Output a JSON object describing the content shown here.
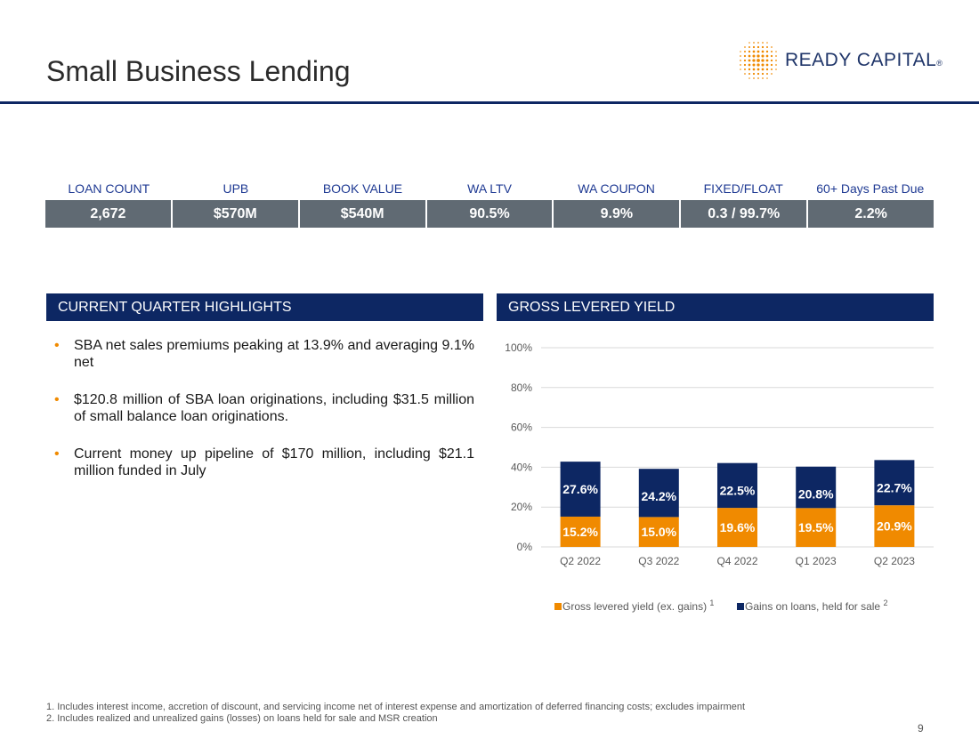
{
  "slide": {
    "title": "Small Business Lending",
    "page_number": "9"
  },
  "logo": {
    "text": "READY CAPITAL",
    "reg_mark": "®",
    "mark_color": "#f08a00"
  },
  "metrics": {
    "labels": [
      "LOAN COUNT",
      "UPB",
      "BOOK VALUE",
      "WA LTV",
      "WA COUPON",
      "FIXED/FLOAT",
      "60+ Days Past Due"
    ],
    "values": [
      "2,672",
      "$570M",
      "$540M",
      "90.5%",
      "9.9%",
      "0.3 / 99.7%",
      "2.2%"
    ]
  },
  "highlights": {
    "header": "CURRENT QUARTER HIGHLIGHTS",
    "items": [
      "SBA net sales premiums peaking at 13.9% and averaging 9.1% net",
      "$120.8 million of SBA loan originations, including $31.5 million of small balance loan originations.",
      "Current money up pipeline of $170 million, including $21.1 million funded in July"
    ]
  },
  "chart_header": "GROSS LEVERED YIELD",
  "chart_data": {
    "type": "bar",
    "stacked": true,
    "categories": [
      "Q2 2022",
      "Q3 2022",
      "Q4 2022",
      "Q1 2023",
      "Q2 2023"
    ],
    "series": [
      {
        "name": "Gross levered yield (ex. gains)",
        "superscript": "1",
        "values": [
          15.2,
          15.0,
          19.6,
          19.5,
          20.9
        ],
        "labels": [
          "15.2%",
          "15.0%",
          "19.6%",
          "19.5%",
          "20.9%"
        ],
        "color": "#f08a00"
      },
      {
        "name": "Gains on loans, held for sale",
        "superscript": "2",
        "values": [
          27.6,
          24.2,
          22.5,
          20.8,
          22.7
        ],
        "labels": [
          "27.6%",
          "24.2%",
          "22.5%",
          "20.8%",
          "22.7%"
        ],
        "color": "#0d2763"
      }
    ],
    "yticks": [
      "0%",
      "20%",
      "40%",
      "60%",
      "80%",
      "100%"
    ],
    "ylim": [
      0,
      100
    ],
    "grid": true,
    "legend_position": "bottom"
  },
  "footnotes": [
    "1. Includes interest income, accretion of discount, and servicing income net of interest expense and amortization of deferred financing costs; excludes impairment",
    "2. Includes realized and unrealized gains (losses) on loans held for sale and MSR creation"
  ]
}
